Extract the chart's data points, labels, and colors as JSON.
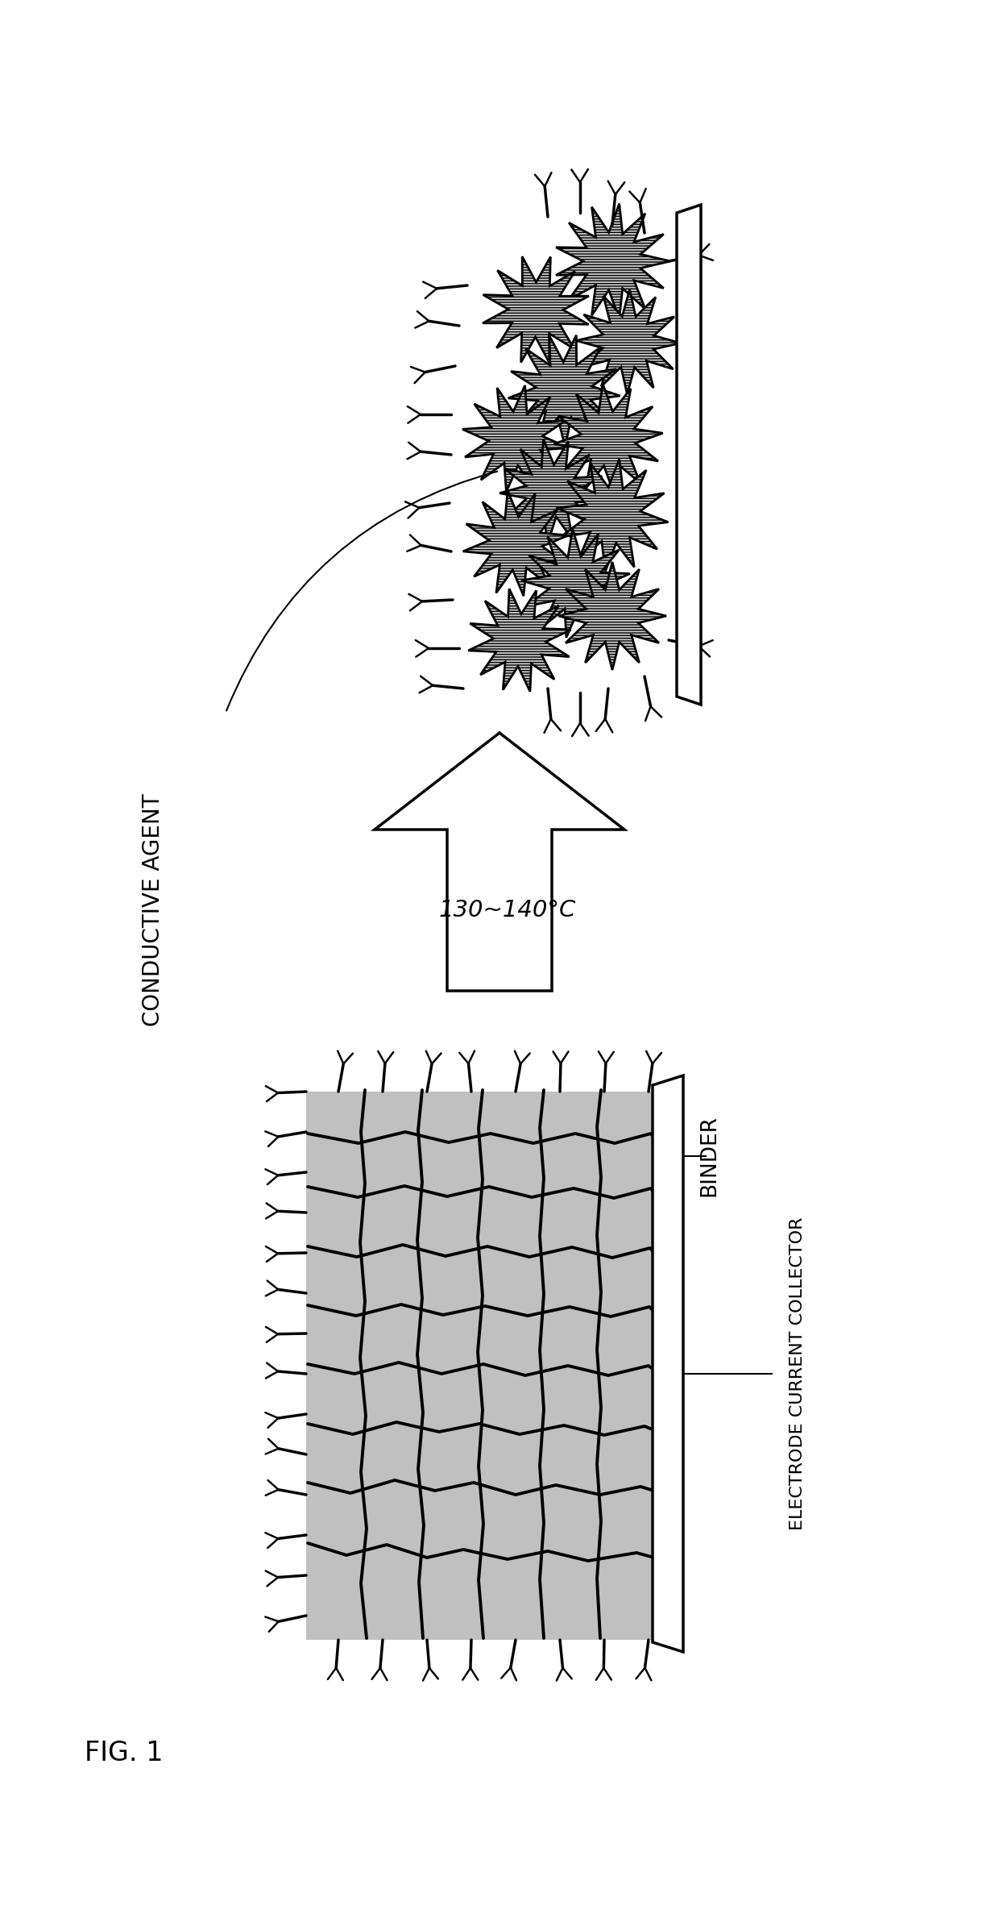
{
  "background_color": "#ffffff",
  "arrow_label": "130~140°C",
  "label_conductive": "CONDUCTIVE AGENT",
  "label_binder": "BINDER",
  "label_collector": "ELECTRODE CURRENT COLLECTOR",
  "fig_label": "FIG. 1",
  "particle_fill": "#c8c8c8",
  "block_fill": "#c0c0c0",
  "line_color": "#000000"
}
